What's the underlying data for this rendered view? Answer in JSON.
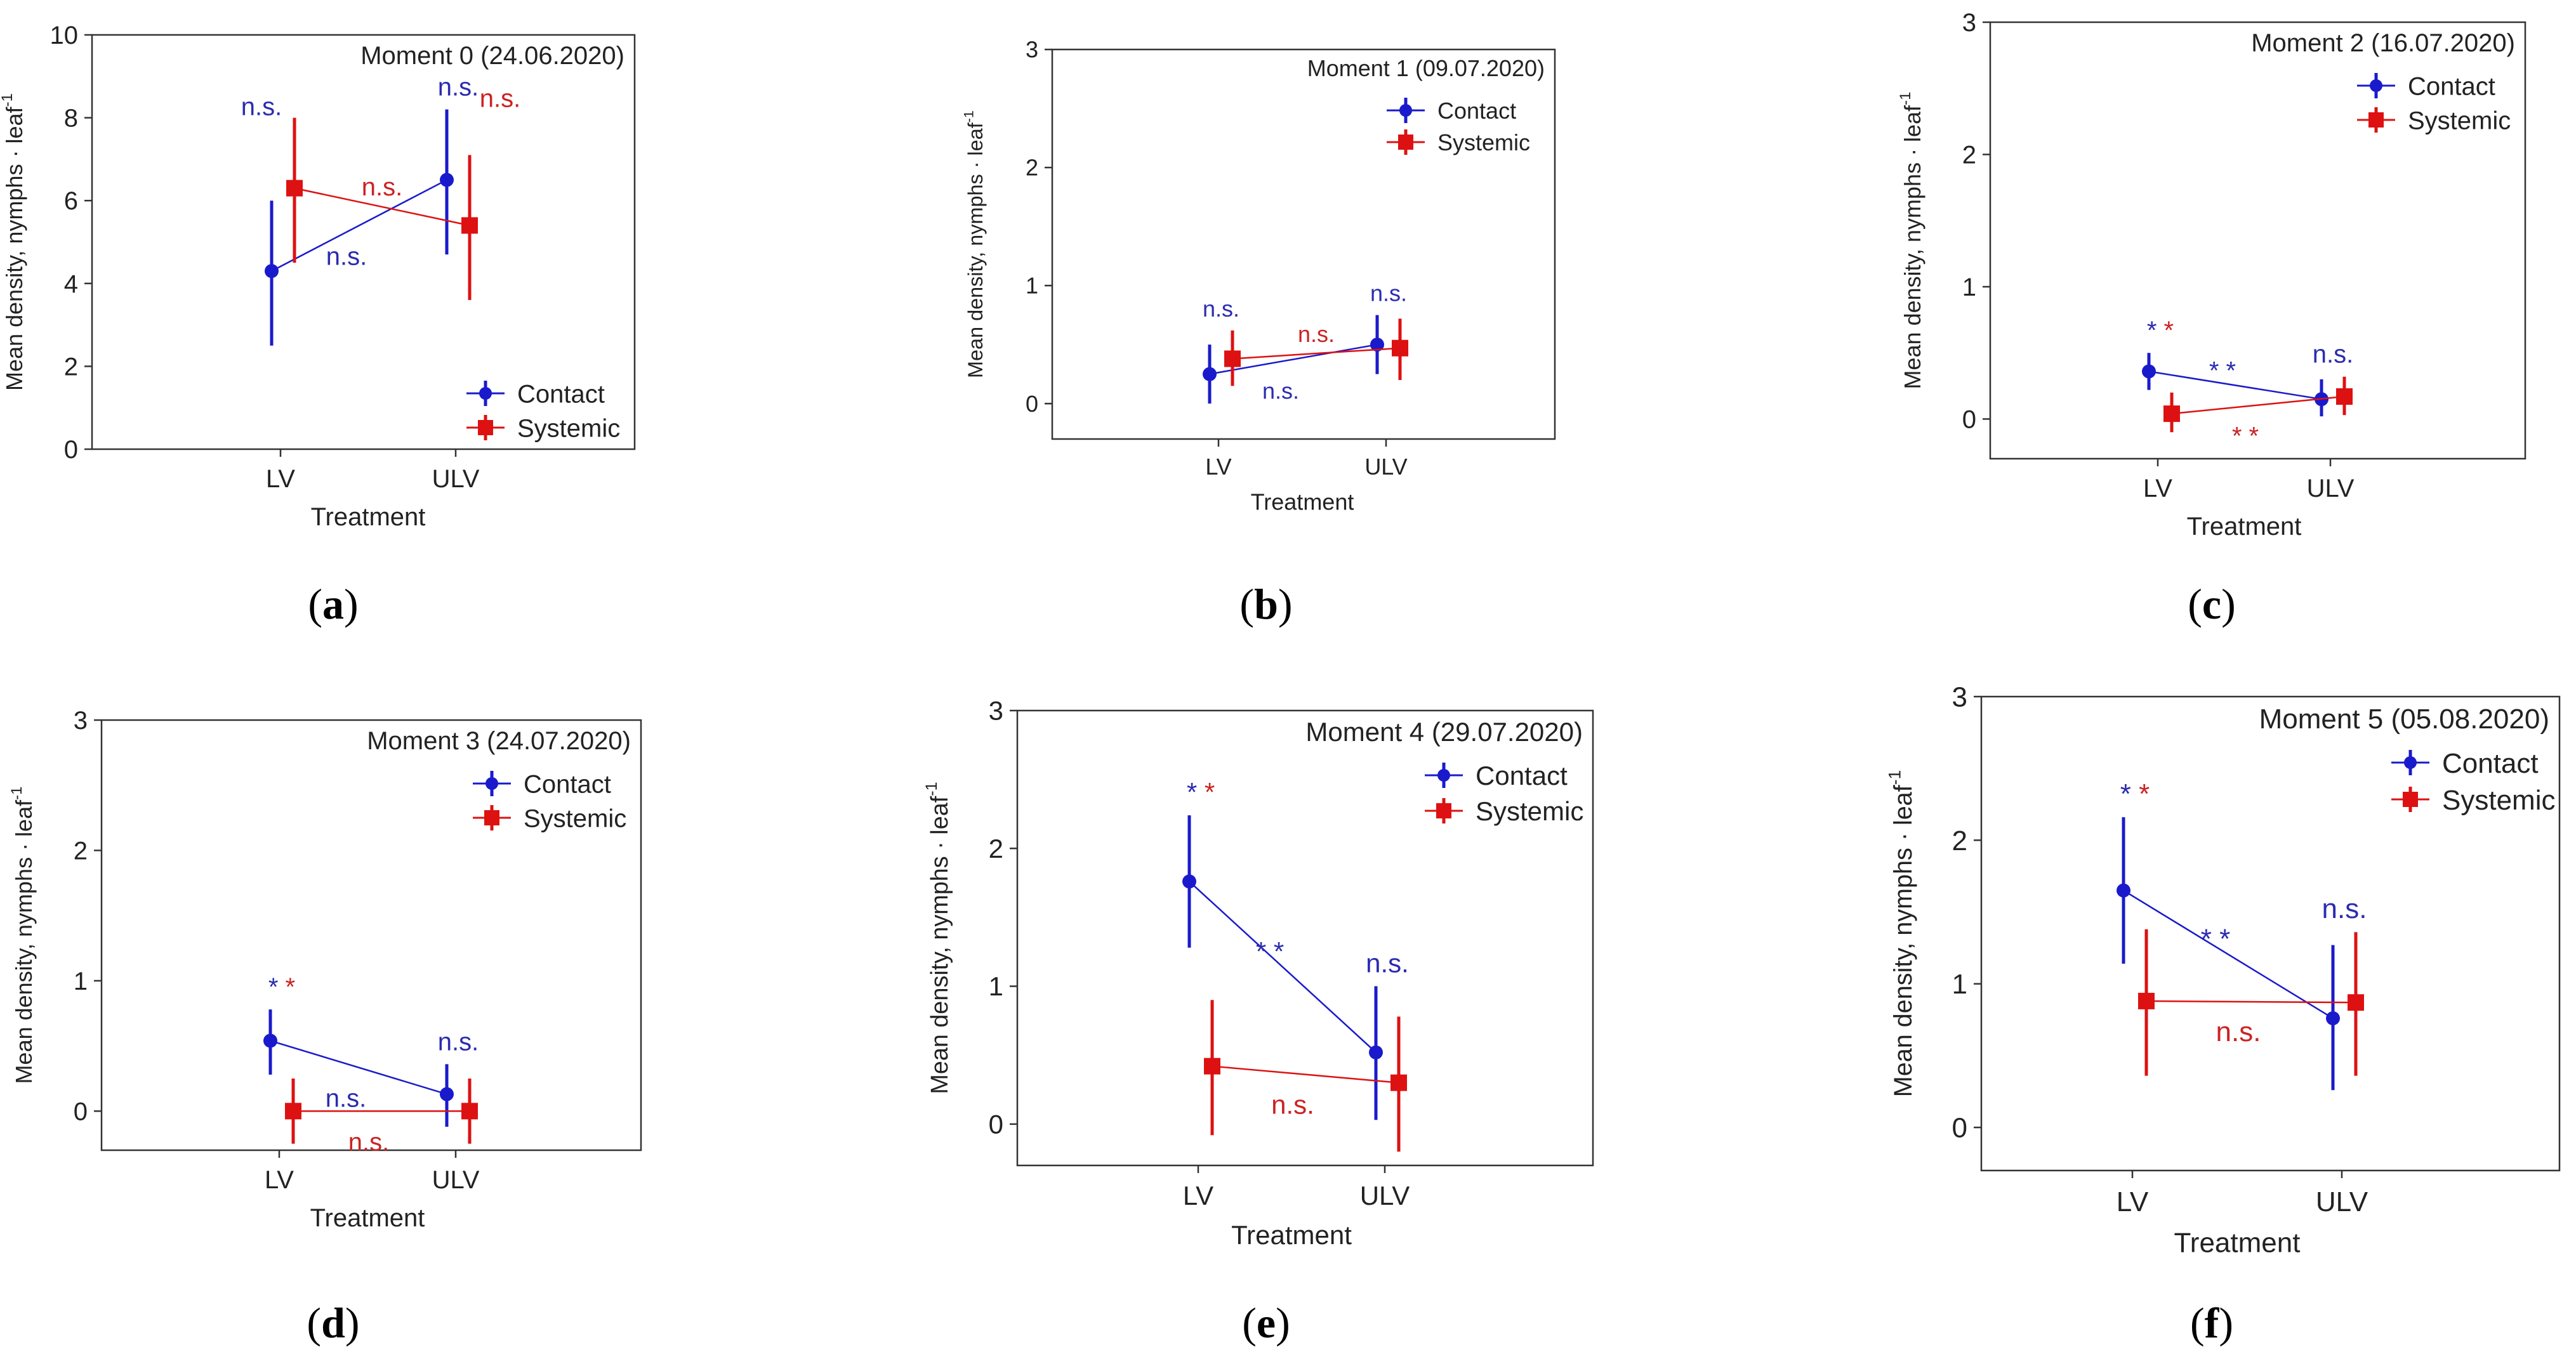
{
  "figure": {
    "series_styles": [
      {
        "name": "Contact",
        "color": "#1a1acc",
        "marker": "circle"
      },
      {
        "name": "Systemic",
        "color": "#dd1111",
        "marker": "square"
      }
    ],
    "annotation_colors": {
      "blue": "#2b2bb0",
      "red": "#cc2222"
    }
  },
  "chart_data": [
    {
      "panel": "a",
      "type": "line",
      "title": "Moment 0 (24.06.2020)",
      "xlabel": "Treatment",
      "ylabel": "Mean density, nymphs · leaf",
      "ylabel_sup": "-1",
      "categories": [
        "LV",
        "ULV"
      ],
      "ylim": [
        0,
        10
      ],
      "yticks": [
        0,
        2,
        4,
        6,
        8,
        10
      ],
      "legend": "bottom-right",
      "series": [
        {
          "name": "Contact",
          "values": [
            4.3,
            6.5
          ],
          "lower": [
            2.5,
            4.7
          ],
          "upper": [
            6.0,
            8.2
          ]
        },
        {
          "name": "Systemic",
          "values": [
            6.3,
            5.4
          ],
          "lower": [
            4.5,
            3.6
          ],
          "upper": [
            8.0,
            7.1
          ]
        }
      ],
      "annotations": [
        {
          "text": "n.s.",
          "color": "blue",
          "pos": "above-lv-contact"
        },
        {
          "text": "n.s.",
          "color": "blue",
          "pos": "above-ulv"
        },
        {
          "text": "n.s.",
          "color": "red",
          "pos": "above-ulv-red"
        },
        {
          "text": "n.s.",
          "color": "red",
          "pos": "mid-systemic-line"
        },
        {
          "text": "n.s.",
          "color": "blue",
          "pos": "mid-contact-line"
        }
      ]
    },
    {
      "panel": "b",
      "type": "line",
      "title": "Moment 1 (09.07.2020)",
      "xlabel": "Treatment",
      "ylabel": "Mean density, nymphs · leaf",
      "ylabel_sup": "-1",
      "categories": [
        "LV",
        "ULV"
      ],
      "ylim": [
        -0.3,
        3
      ],
      "yticks": [
        0,
        1,
        2,
        3
      ],
      "legend": "top-right",
      "series": [
        {
          "name": "Contact",
          "values": [
            0.25,
            0.5
          ],
          "lower": [
            0.0,
            0.25
          ],
          "upper": [
            0.5,
            0.75
          ]
        },
        {
          "name": "Systemic",
          "values": [
            0.38,
            0.47
          ],
          "lower": [
            0.15,
            0.2
          ],
          "upper": [
            0.62,
            0.72
          ]
        }
      ],
      "annotations": [
        {
          "text": "n.s.",
          "color": "blue",
          "pos": "above-lv"
        },
        {
          "text": "n.s.",
          "color": "blue",
          "pos": "above-ulv"
        },
        {
          "text": "n.s.",
          "color": "red",
          "pos": "mid-systemic-line"
        },
        {
          "text": "n.s.",
          "color": "blue",
          "pos": "mid-contact-line"
        }
      ]
    },
    {
      "panel": "c",
      "type": "line",
      "title": "Moment 2 (16.07.2020)",
      "xlabel": "Treatment",
      "ylabel": "Mean density, nymphs · leaf",
      "ylabel_sup": "-1",
      "categories": [
        "LV",
        "ULV"
      ],
      "ylim": [
        -0.3,
        3
      ],
      "yticks": [
        0,
        1,
        2,
        3
      ],
      "legend": "top-right",
      "series": [
        {
          "name": "Contact",
          "values": [
            0.36,
            0.15
          ],
          "lower": [
            0.22,
            0.02
          ],
          "upper": [
            0.5,
            0.3
          ]
        },
        {
          "name": "Systemic",
          "values": [
            0.04,
            0.17
          ],
          "lower": [
            -0.1,
            0.03
          ],
          "upper": [
            0.2,
            0.32
          ]
        }
      ],
      "annotations": [
        {
          "text": "* *",
          "color": "split",
          "pos": "above-lv"
        },
        {
          "text": "* *",
          "color": "blue",
          "pos": "mid-contact-line"
        },
        {
          "text": "n.s.",
          "color": "blue",
          "pos": "above-ulv"
        },
        {
          "text": "* *",
          "color": "red",
          "pos": "below-systemic-line"
        }
      ]
    },
    {
      "panel": "d",
      "type": "line",
      "title": "Moment 3 (24.07.2020)",
      "xlabel": "Treatment",
      "ylabel": "Mean density, nymphs · leaf",
      "ylabel_sup": "-1",
      "categories": [
        "LV",
        "ULV"
      ],
      "ylim": [
        -0.3,
        3
      ],
      "yticks": [
        0,
        1,
        2,
        3
      ],
      "legend": "top-right",
      "series": [
        {
          "name": "Contact",
          "values": [
            0.54,
            0.13
          ],
          "lower": [
            0.28,
            -0.12
          ],
          "upper": [
            0.78,
            0.36
          ]
        },
        {
          "name": "Systemic",
          "values": [
            0.0,
            0.0
          ],
          "lower": [
            -0.25,
            -0.25
          ],
          "upper": [
            0.25,
            0.25
          ]
        }
      ],
      "annotations": [
        {
          "text": "* *",
          "color": "split",
          "pos": "above-lv"
        },
        {
          "text": "n.s.",
          "color": "blue",
          "pos": "mid-contact-line"
        },
        {
          "text": "n.s.",
          "color": "blue",
          "pos": "above-ulv"
        },
        {
          "text": "n.s.",
          "color": "red",
          "pos": "below-systemic-line"
        }
      ]
    },
    {
      "panel": "e",
      "type": "line",
      "title": "Moment 4 (29.07.2020)",
      "xlabel": "Treatment",
      "ylabel": "Mean density, nymphs · leaf",
      "ylabel_sup": "-1",
      "categories": [
        "LV",
        "ULV"
      ],
      "ylim": [
        -0.3,
        3
      ],
      "yticks": [
        0,
        1,
        2,
        3
      ],
      "legend": "top-right",
      "series": [
        {
          "name": "Contact",
          "values": [
            1.76,
            0.52
          ],
          "lower": [
            1.28,
            0.03
          ],
          "upper": [
            2.24,
            1.0
          ]
        },
        {
          "name": "Systemic",
          "values": [
            0.42,
            0.3
          ],
          "lower": [
            -0.08,
            -0.2
          ],
          "upper": [
            0.9,
            0.78
          ]
        }
      ],
      "annotations": [
        {
          "text": "* *",
          "color": "split",
          "pos": "above-lv"
        },
        {
          "text": "* *",
          "color": "blue",
          "pos": "mid-contact-line"
        },
        {
          "text": "n.s.",
          "color": "blue",
          "pos": "above-ulv"
        },
        {
          "text": "n.s.",
          "color": "red",
          "pos": "below-systemic-line"
        }
      ]
    },
    {
      "panel": "f",
      "type": "line",
      "title": "Moment 5 (05.08.2020)",
      "xlabel": "Treatment",
      "ylabel": "Mean density, nymphs · leaf",
      "ylabel_sup": "-1",
      "categories": [
        "LV",
        "ULV"
      ],
      "ylim": [
        -0.3,
        3
      ],
      "yticks": [
        0,
        1,
        2,
        3
      ],
      "legend": "top-right",
      "series": [
        {
          "name": "Contact",
          "values": [
            1.65,
            0.76
          ],
          "lower": [
            1.14,
            0.26
          ],
          "upper": [
            2.16,
            1.27
          ]
        },
        {
          "name": "Systemic",
          "values": [
            0.88,
            0.87
          ],
          "lower": [
            0.36,
            0.36
          ],
          "upper": [
            1.38,
            1.36
          ]
        }
      ],
      "annotations": [
        {
          "text": "* *",
          "color": "split",
          "pos": "above-lv"
        },
        {
          "text": "* *",
          "color": "blue",
          "pos": "mid-contact-line"
        },
        {
          "text": "n.s.",
          "color": "blue",
          "pos": "above-ulv"
        },
        {
          "text": "n.s.",
          "color": "red",
          "pos": "below-systemic-line"
        }
      ]
    }
  ]
}
